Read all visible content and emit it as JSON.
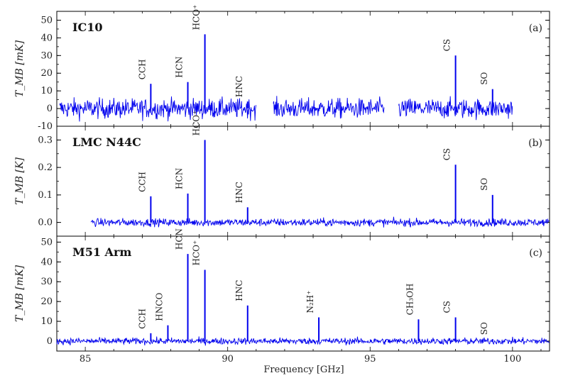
{
  "chart_data": {
    "type": "line",
    "xlabel": "Frequency [GHz]",
    "xlim": [
      84.0,
      101.3
    ],
    "xticks": [
      85,
      90,
      95,
      100
    ],
    "line_color": "#0000ee",
    "panels": [
      {
        "title": "IC10",
        "panel_label": "(a)",
        "ylabel": "T_MB [mK]",
        "ylim": [
          -10,
          55
        ],
        "yticks": [
          -10,
          0,
          10,
          20,
          30,
          40,
          50
        ],
        "noise": 4,
        "segments": [
          [
            84.1,
            91.0
          ],
          [
            91.6,
            95.5
          ],
          [
            96.0,
            100.0
          ]
        ],
        "lines": [
          {
            "label": "CCH",
            "freq": 87.3,
            "value": 14
          },
          {
            "label": "HCN",
            "freq": 88.6,
            "value": 15
          },
          {
            "label": "HCO⁺",
            "freq": 89.2,
            "value": 42
          },
          {
            "label": "HNC",
            "freq": 90.7,
            "value": 4
          },
          {
            "label": "CS",
            "freq": 98.0,
            "value": 30
          },
          {
            "label": "SO",
            "freq": 99.3,
            "value": 11
          }
        ]
      },
      {
        "title": "LMC N44C",
        "panel_label": "(b)",
        "ylabel": "T_MB [K]",
        "ylim": [
          -0.05,
          0.35
        ],
        "yticks": [
          0.0,
          0.1,
          0.2,
          0.3
        ],
        "noise": 0.01,
        "segments": [
          [
            85.2,
            101.3
          ]
        ],
        "lines": [
          {
            "label": "CCH",
            "freq": 87.3,
            "value": 0.095
          },
          {
            "label": "HCN",
            "freq": 88.6,
            "value": 0.105
          },
          {
            "label": "HCO⁺",
            "freq": 89.2,
            "value": 0.3
          },
          {
            "label": "HNC",
            "freq": 90.7,
            "value": 0.055
          },
          {
            "label": "CS",
            "freq": 98.0,
            "value": 0.21
          },
          {
            "label": "SO",
            "freq": 99.3,
            "value": 0.1
          }
        ]
      },
      {
        "title": "M51 Arm",
        "panel_label": "(c)",
        "ylabel": "T_MB [mK]",
        "ylim": [
          -5,
          53
        ],
        "yticks": [
          0,
          10,
          20,
          30,
          40,
          50
        ],
        "noise": 1.2,
        "segments": [
          [
            84.0,
            101.3
          ]
        ],
        "lines": [
          {
            "label": "CCH",
            "freq": 87.3,
            "value": 4
          },
          {
            "label": "HNCO",
            "freq": 87.9,
            "value": 8
          },
          {
            "label": "HCN",
            "freq": 88.6,
            "value": 44
          },
          {
            "label": "HCO⁺",
            "freq": 89.2,
            "value": 36
          },
          {
            "label": "HNC",
            "freq": 90.7,
            "value": 18
          },
          {
            "label": "N₂H⁺",
            "freq": 93.2,
            "value": 12
          },
          {
            "label": "CH₃OH",
            "freq": 96.7,
            "value": 11
          },
          {
            "label": "CS",
            "freq": 98.0,
            "value": 12
          },
          {
            "label": "SO",
            "freq": 99.3,
            "value": 1
          }
        ]
      }
    ]
  }
}
